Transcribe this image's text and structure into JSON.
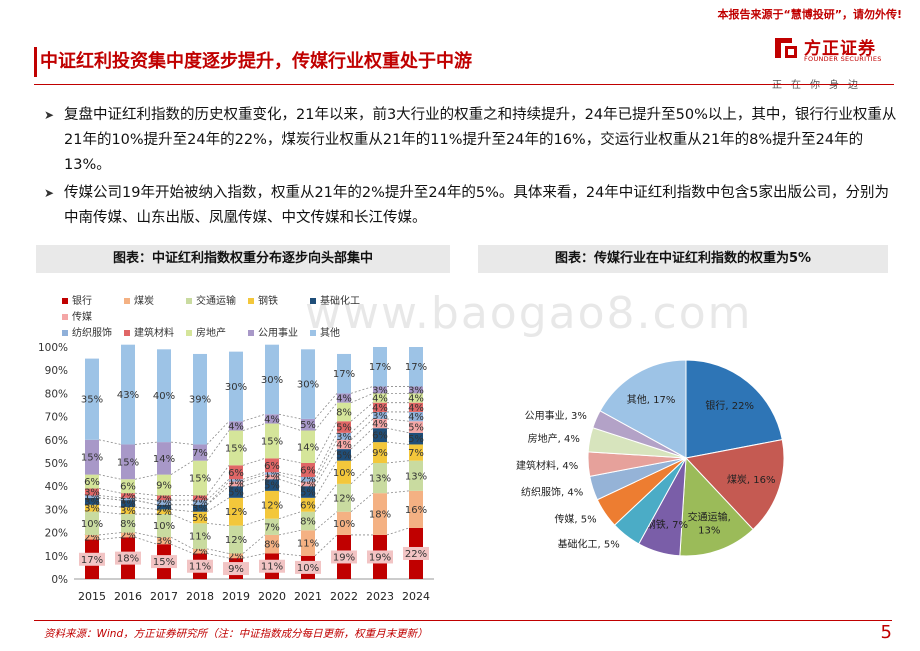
{
  "header": {
    "top_note": "本报告来源于“慧博投研”，请勿外传!",
    "logo_cn": "方正证券",
    "logo_en": "FOUNDER SECURITIES",
    "logo_slogan": "正在你身边",
    "page_title": "中证红利投资集中度逐步提升，传媒行业权重处于中游"
  },
  "bullets": [
    "复盘中证红利指数的历史权重变化，21年以来，前3大行业的权重之和持续提升，24年已提升至50%以上，其中，银行行业权重从21年的10%提升至24年的22%，煤炭行业权重从21年的11%提升至24年的16%，交运行业权重从21年的8%提升至24年的13%。",
    "传媒公司19年开始被纳入指数，权重从21年的2%提升至24年的5%。具体来看，24年中证红利指数中包含5家出版公司，分别为中南传媒、山东出版、凤凰传媒、中文传媒和长江传媒。"
  ],
  "panels": {
    "left_title": "图表：中证红利指数权重分布逐步向头部集中",
    "right_title": "图表：传媒行业在中证红利指数的权重为5%"
  },
  "watermark": "www.baogao8.com",
  "footer": {
    "source": "资料来源：Wind，方正证券研究所（注：中证指数成分每日更新，权重月末更新）",
    "page_number": "5"
  },
  "chart_data": [
    {
      "type": "bar",
      "stacked": true,
      "categories": [
        "2015",
        "2016",
        "2017",
        "2018",
        "2019",
        "2020",
        "2021",
        "2022",
        "2023",
        "2024"
      ],
      "ylim": [
        0,
        100
      ],
      "yticks": [
        "0%",
        "10%",
        "20%",
        "30%",
        "40%",
        "50%",
        "60%",
        "70%",
        "80%",
        "90%",
        "100%"
      ],
      "legend_position": "top",
      "series": [
        {
          "name": "银行",
          "color": "#c00000",
          "values": [
            17,
            18,
            15,
            11,
            9,
            11,
            10,
            19,
            19,
            22
          ]
        },
        {
          "name": "煤炭",
          "color": "#f4b183",
          "values": [
            2,
            2,
            3,
            2,
            2,
            8,
            11,
            10,
            18,
            16
          ]
        },
        {
          "name": "交通运输",
          "color": "#c9dba0",
          "values": [
            10,
            8,
            10,
            11,
            12,
            7,
            8,
            12,
            13,
            13
          ]
        },
        {
          "name": "钢铁",
          "color": "#f3c73b",
          "values": [
            3,
            3,
            2,
            5,
            12,
            12,
            6,
            10,
            9,
            7
          ]
        },
        {
          "name": "基础化工",
          "color": "#1f4e79",
          "values": [
            3,
            3,
            2,
            3,
            5,
            5,
            5,
            5,
            6,
            5
          ]
        },
        {
          "name": "传媒",
          "color": "#f4a6a6",
          "values": [
            0,
            0,
            0,
            0,
            2,
            2,
            2,
            4,
            4,
            5
          ]
        },
        {
          "name": "纺织服饰",
          "color": "#8fb0d9",
          "values": [
            1,
            1,
            2,
            2,
            1,
            1,
            2,
            3,
            3,
            4
          ]
        },
        {
          "name": "建筑材料",
          "color": "#e06666",
          "values": [
            3,
            2,
            2,
            2,
            6,
            6,
            6,
            5,
            4,
            4
          ]
        },
        {
          "name": "房地产",
          "color": "#d5e59a",
          "values": [
            6,
            6,
            9,
            15,
            15,
            15,
            14,
            8,
            4,
            4
          ]
        },
        {
          "name": "公用事业",
          "color": "#a898c8",
          "values": [
            15,
            15,
            14,
            7,
            4,
            4,
            5,
            4,
            3,
            3
          ]
        },
        {
          "name": "其他",
          "color": "#9dc3e6",
          "values": [
            35,
            43,
            40,
            39,
            30,
            30,
            30,
            17,
            17,
            17
          ]
        }
      ],
      "data_labels": {
        "银行": [
          "17%",
          "18%",
          "15%",
          "11%",
          "9%",
          "11%",
          "10%",
          "19%",
          "19%",
          "22%"
        ],
        "煤炭": [
          "2%",
          "2%",
          "3%",
          "2%",
          "2%",
          "8%",
          "11%",
          "10%",
          "18%",
          "16%"
        ],
        "交通运输": [
          "10%",
          "8%",
          "10%",
          "11%",
          "12%",
          "7%",
          "8%",
          "12%",
          "13%",
          "13%"
        ],
        "钢铁": [
          "3%",
          "3%",
          "2%",
          "5%",
          "12%",
          "12%",
          "6%",
          "10%",
          "9%",
          "7%"
        ],
        "基础化工": [
          "3%",
          "3%",
          "2%",
          "3%",
          "5%",
          "5%",
          "5%",
          "5%",
          "6%",
          "5%"
        ],
        "传媒": [
          "",
          "",
          "",
          "",
          "2%",
          "2%",
          "2%",
          "4%",
          "4%",
          "5%"
        ],
        "纺织服饰": [
          "1%",
          "1%",
          "2%",
          "2%",
          "1%",
          "1%",
          "2%",
          "3%",
          "3%",
          "4%"
        ],
        "建筑材料": [
          "3%",
          "2%",
          "2%",
          "2%",
          "6%",
          "6%",
          "6%",
          "5%",
          "4%",
          "4%"
        ],
        "房地产": [
          "6%",
          "6%",
          "9%",
          "15%",
          "15%",
          "15%",
          "14%",
          "8%",
          "4%",
          "4%"
        ],
        "公用事业": [
          "15%",
          "15%",
          "14%",
          "7%",
          "4%",
          "4%",
          "5%",
          "4%",
          "3%",
          "3%"
        ],
        "其他": [
          "35%",
          "43%",
          "40%",
          "39%",
          "30%",
          "30%",
          "30%",
          "17%",
          "17%",
          "17%"
        ]
      }
    },
    {
      "type": "pie",
      "slices": [
        {
          "label": "银行",
          "value": 22,
          "text": "银行, 22%",
          "color": "#2e75b6"
        },
        {
          "label": "煤炭",
          "value": 16,
          "text": "煤炭, 16%",
          "color": "#c55a52"
        },
        {
          "label": "交通运输",
          "value": 13,
          "text": "交通运输, 13%",
          "color": "#9bbb59"
        },
        {
          "label": "钢铁",
          "value": 7,
          "text": "钢铁, 7%",
          "color": "#7a5ea8"
        },
        {
          "label": "基础化工",
          "value": 5,
          "text": "基础化工, 5%",
          "color": "#4bacc6"
        },
        {
          "label": "传媒",
          "value": 5,
          "text": "传媒, 5%",
          "color": "#ed7d31"
        },
        {
          "label": "纺织服饰",
          "value": 4,
          "text": "纺织服饰, 4%",
          "color": "#95b3d7"
        },
        {
          "label": "建筑材料",
          "value": 4,
          "text": "建筑材料, 4%",
          "color": "#e6a19b"
        },
        {
          "label": "房地产",
          "value": 4,
          "text": "房地产, 4%",
          "color": "#d7e4bd"
        },
        {
          "label": "公用事业",
          "value": 3,
          "text": "公用事业, 3%",
          "color": "#b3a2c7"
        },
        {
          "label": "其他",
          "value": 17,
          "text": "其他, 17%",
          "color": "#9dc3e6"
        }
      ]
    }
  ]
}
